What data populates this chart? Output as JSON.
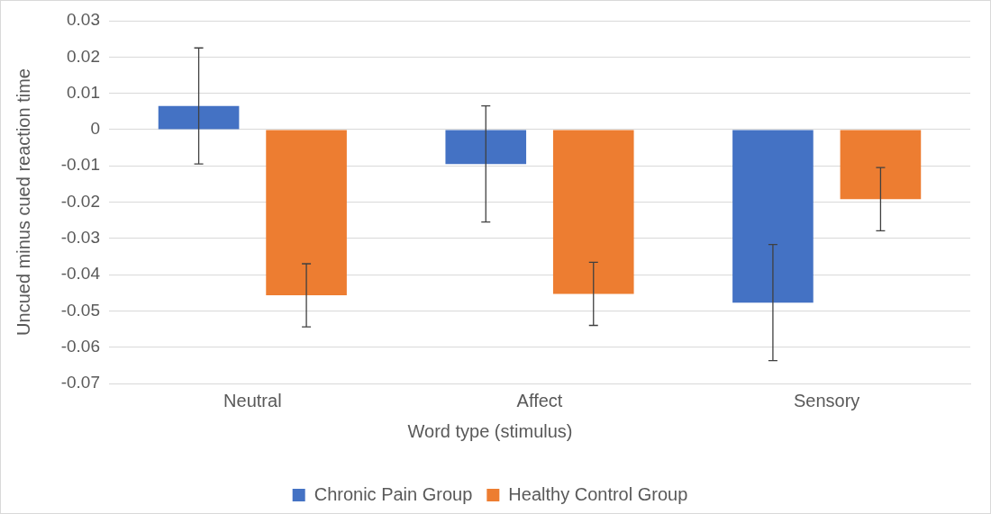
{
  "chart_data": {
    "type": "bar",
    "xlabel": "Word type (stimulus)",
    "ylabel": "Uncued minus cued reaction time",
    "categories": [
      "Neutral",
      "Affect",
      "Sensory"
    ],
    "series": [
      {
        "name": "Chronic Pain Group",
        "color": "#4472c4",
        "values": [
          0.0065,
          -0.0095,
          -0.0477
        ],
        "errors": [
          0.016,
          0.016,
          0.016
        ]
      },
      {
        "name": "Healthy Control Group",
        "color": "#ed7d31",
        "values": [
          -0.0457,
          -0.0453,
          -0.0192
        ],
        "errors": [
          0.0087,
          0.0087,
          0.0087
        ]
      }
    ],
    "ylim": [
      -0.07,
      0.03
    ],
    "yticks": [
      -0.07,
      -0.06,
      -0.05,
      -0.04,
      -0.03,
      -0.02,
      -0.01,
      0,
      0.01,
      0.02,
      0.03
    ],
    "grid": "y",
    "legend": "bottom"
  }
}
